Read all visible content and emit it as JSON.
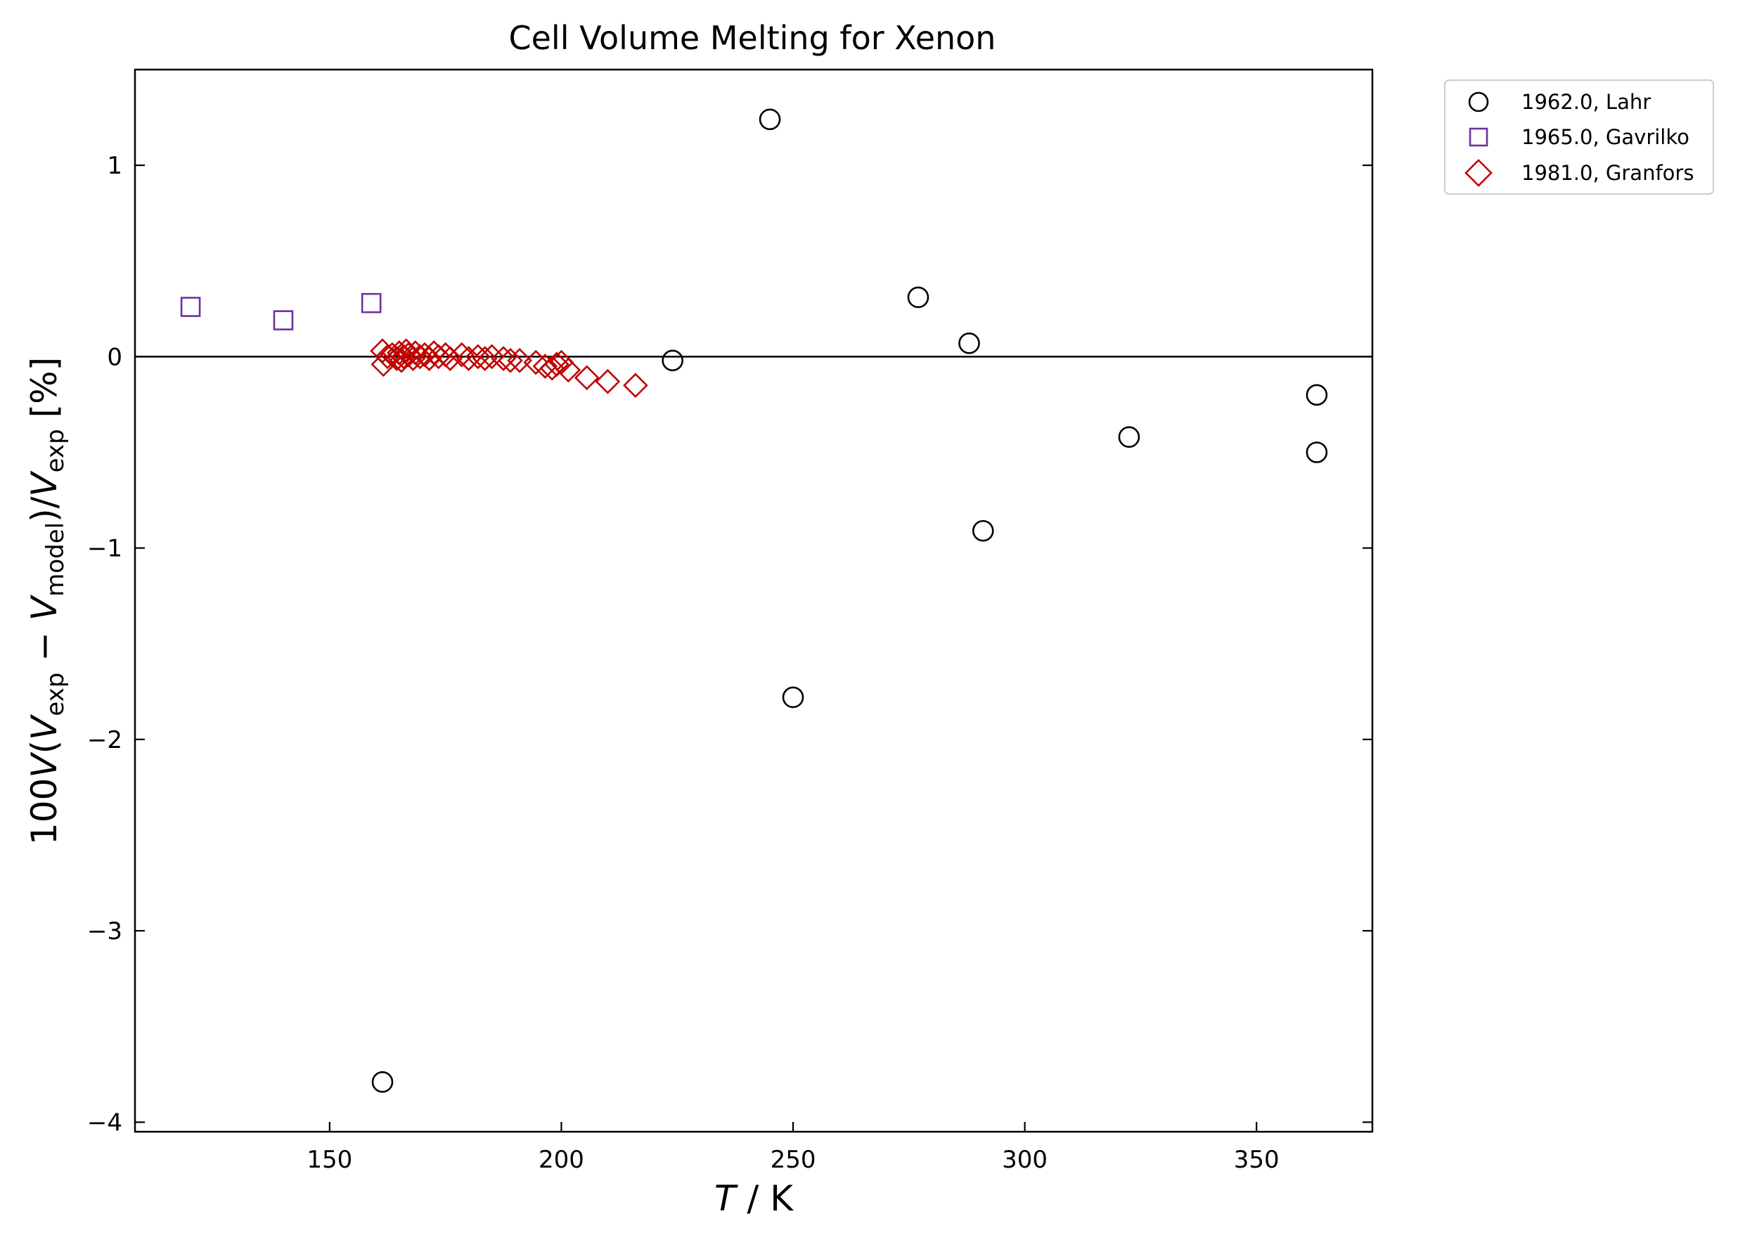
{
  "chart_data": {
    "type": "scatter",
    "title": "Cell Volume Melting for Xenon",
    "xlabel": {
      "pre": "",
      "italic": "T",
      "post": " / K"
    },
    "ylabel": {
      "lead": "100",
      "V": "V",
      "exp": "exp",
      "model": "model",
      "minus": " − ",
      "pct": " [%]"
    },
    "xlim": [
      108,
      375
    ],
    "ylim": [
      -4.05,
      1.5
    ],
    "xticks": [
      150,
      200,
      250,
      300,
      350
    ],
    "xtick_labels": [
      "150",
      "200",
      "250",
      "300",
      "350"
    ],
    "yticks": [
      -4,
      -3,
      -2,
      -1,
      0,
      1
    ],
    "ytick_labels": [
      "−4",
      "−3",
      "−2",
      "−1",
      "0",
      "1"
    ],
    "reference_line": 0,
    "legend_position": "outside-top-right",
    "series": [
      {
        "name": "1962.0, Lahr",
        "marker": "circle",
        "color": "#000000",
        "points": [
          {
            "x": 161.4,
            "y": -3.79
          },
          {
            "x": 224.0,
            "y": -0.02
          },
          {
            "x": 245.0,
            "y": 1.24
          },
          {
            "x": 250.0,
            "y": -1.78
          },
          {
            "x": 277.0,
            "y": 0.31
          },
          {
            "x": 288.0,
            "y": 0.07
          },
          {
            "x": 291.0,
            "y": -0.91
          },
          {
            "x": 322.5,
            "y": -0.42
          },
          {
            "x": 363.0,
            "y": -0.2
          },
          {
            "x": 363.0,
            "y": -0.5
          }
        ]
      },
      {
        "name": "1965.0, Gavrilko",
        "marker": "square",
        "color": "#7030a0",
        "points": [
          {
            "x": 120.0,
            "y": 0.26
          },
          {
            "x": 140.0,
            "y": 0.19
          },
          {
            "x": 159.0,
            "y": 0.28
          }
        ]
      },
      {
        "name": "1981.0, Granfors",
        "marker": "diamond",
        "color": "#c00000",
        "points": [
          {
            "x": 161.4,
            "y": 0.03
          },
          {
            "x": 161.6,
            "y": -0.04
          },
          {
            "x": 162.5,
            "y": 0.0
          },
          {
            "x": 163.5,
            "y": 0.01
          },
          {
            "x": 164.5,
            "y": -0.01
          },
          {
            "x": 165.0,
            "y": 0.02
          },
          {
            "x": 165.5,
            "y": -0.02
          },
          {
            "x": 166.0,
            "y": 0.0
          },
          {
            "x": 166.5,
            "y": 0.03
          },
          {
            "x": 167.0,
            "y": 0.01
          },
          {
            "x": 168.0,
            "y": -0.01
          },
          {
            "x": 168.5,
            "y": 0.02
          },
          {
            "x": 169.5,
            "y": 0.0
          },
          {
            "x": 170.5,
            "y": 0.01
          },
          {
            "x": 171.5,
            "y": -0.01
          },
          {
            "x": 172.5,
            "y": 0.02
          },
          {
            "x": 173.5,
            "y": 0.0
          },
          {
            "x": 175.0,
            "y": 0.01
          },
          {
            "x": 176.0,
            "y": -0.01
          },
          {
            "x": 178.5,
            "y": 0.01
          },
          {
            "x": 180.0,
            "y": -0.01
          },
          {
            "x": 182.0,
            "y": 0.0
          },
          {
            "x": 183.5,
            "y": -0.01
          },
          {
            "x": 185.0,
            "y": 0.0
          },
          {
            "x": 187.5,
            "y": -0.01
          },
          {
            "x": 189.0,
            "y": -0.02
          },
          {
            "x": 191.0,
            "y": -0.02
          },
          {
            "x": 194.5,
            "y": -0.03
          },
          {
            "x": 196.5,
            "y": -0.05
          },
          {
            "x": 198.0,
            "y": -0.06
          },
          {
            "x": 199.0,
            "y": -0.04
          },
          {
            "x": 200.0,
            "y": -0.03
          },
          {
            "x": 201.5,
            "y": -0.07
          },
          {
            "x": 205.5,
            "y": -0.11
          },
          {
            "x": 210.0,
            "y": -0.13
          },
          {
            "x": 216.0,
            "y": -0.15
          }
        ]
      }
    ]
  }
}
